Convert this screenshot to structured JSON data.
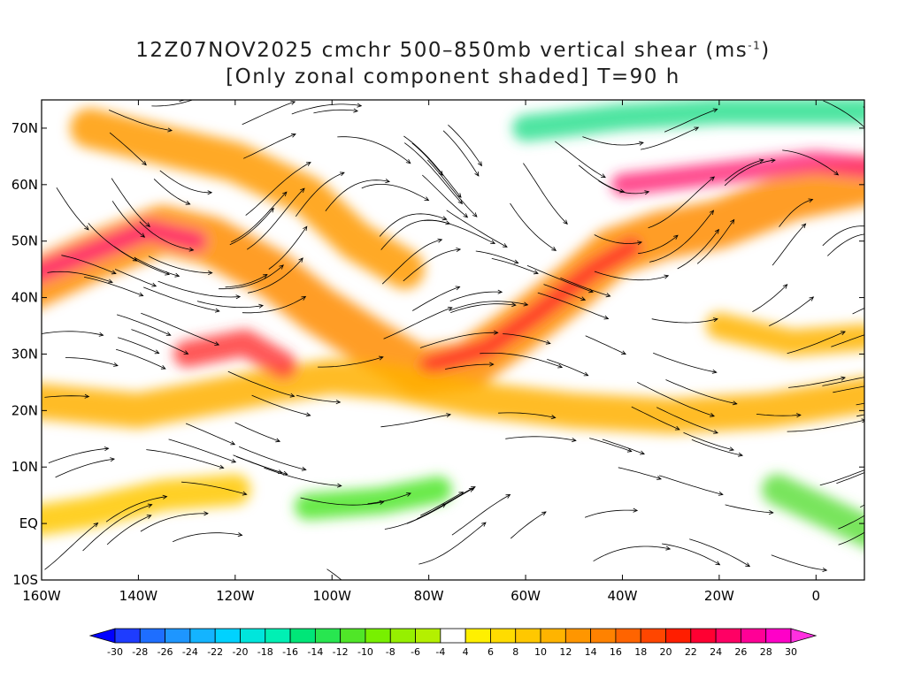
{
  "title": {
    "line1": "12Z07NOV2025 cmchr 500–850mb vertical shear (ms",
    "line1_sup": "-1",
    "line1_end": ")",
    "line2": "[Only zonal component shaded] T=90 h"
  },
  "axes": {
    "lat_labels": [
      "70N",
      "60N",
      "50N",
      "40N",
      "30N",
      "20N",
      "10N",
      "EQ",
      "10S"
    ],
    "lat_values": [
      70,
      60,
      50,
      40,
      30,
      20,
      10,
      0,
      -10
    ],
    "lon_labels": [
      "160W",
      "140W",
      "120W",
      "100W",
      "80W",
      "60W",
      "40W",
      "20W",
      "0"
    ],
    "lon_values": [
      -160,
      -140,
      -120,
      -100,
      -80,
      -60,
      -40,
      -20,
      0
    ],
    "lon_range": [
      -160,
      10
    ],
    "lat_range": [
      -10,
      75
    ]
  },
  "colorbar": {
    "labels": [
      "-30",
      "-28",
      "-26",
      "-24",
      "-22",
      "-20",
      "-18",
      "-16",
      "-14",
      "-12",
      "-10",
      "-8",
      "-6",
      "-4",
      "4",
      "6",
      "8",
      "10",
      "12",
      "14",
      "16",
      "18",
      "20",
      "22",
      "24",
      "26",
      "28",
      "30"
    ],
    "colors": [
      "#1e3cff",
      "#1e6eff",
      "#1e96ff",
      "#14b4ff",
      "#00d2ff",
      "#00e6dc",
      "#00f0b4",
      "#00e678",
      "#28e650",
      "#50e628",
      "#78f000",
      "#96f000",
      "#b4f000",
      "#ffffff",
      "#fff000",
      "#ffdc00",
      "#ffc800",
      "#ffb400",
      "#ff9600",
      "#ff8200",
      "#ff6400",
      "#ff4600",
      "#ff1e00",
      "#ff0032",
      "#ff0064",
      "#ff0096",
      "#ff00c8"
    ],
    "under_color": "#0000ff",
    "over_color": "#ff30e0"
  },
  "field": {
    "description_units": "ms-1",
    "shaded_variable": "zonal component of 500-850mb vertical shear"
  }
}
